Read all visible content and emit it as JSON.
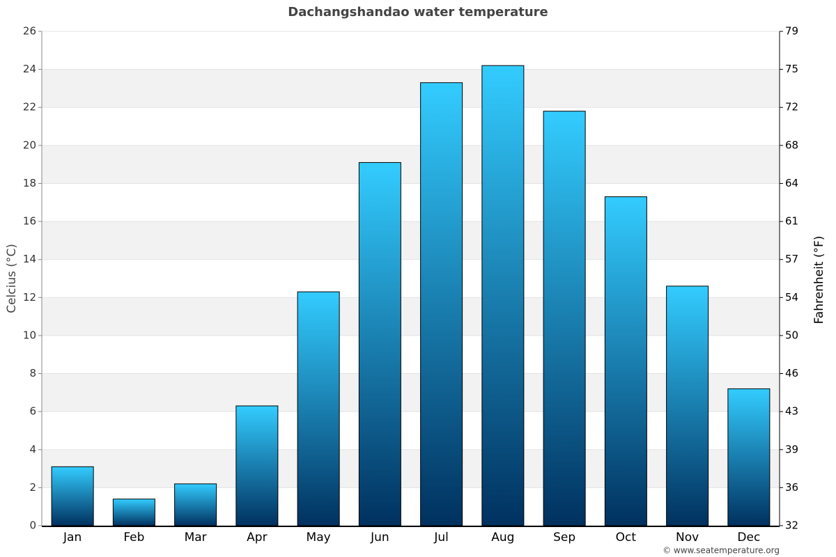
{
  "chart_data": {
    "type": "bar",
    "title": "Dachangshandao water temperature",
    "y_label": "Celcius (°C)",
    "y2_label": "Fahrenheit (°F)",
    "categories": [
      "Jan",
      "Feb",
      "Mar",
      "Apr",
      "May",
      "Jun",
      "Jul",
      "Aug",
      "Sep",
      "Oct",
      "Nov",
      "Dec"
    ],
    "values": [
      3.1,
      1.4,
      2.2,
      6.3,
      12.3,
      19.1,
      23.3,
      24.2,
      21.8,
      17.3,
      12.6,
      7.2
    ],
    "gradient": [
      "#33ccff",
      "#00315f"
    ],
    "ylim": [
      0,
      26
    ],
    "yticks": [
      0,
      2,
      4,
      6,
      8,
      10,
      12,
      14,
      16,
      18,
      20,
      22,
      24,
      26
    ],
    "y2lim": [
      32,
      78.8
    ],
    "y2ticks": [
      32,
      {
        "value": 35.6,
        "label": "36"
      },
      {
        "value": 39.2,
        "label": "39"
      },
      {
        "value": 42.8,
        "label": "43"
      },
      {
        "value": 46.4,
        "label": "46"
      },
      50,
      {
        "value": 53.6,
        "label": "54"
      },
      {
        "value": 57.2,
        "label": "57"
      },
      {
        "value": 60.8,
        "label": "61"
      },
      {
        "value": 64.4,
        "label": "64"
      },
      68,
      {
        "value": 71.6,
        "label": "72"
      },
      {
        "value": 75.2,
        "label": "75"
      },
      {
        "value": 78.8,
        "label": "79"
      }
    ],
    "grid": true,
    "band_color": "#f2f2f2",
    "credit": "© www.seatemperature.org"
  }
}
